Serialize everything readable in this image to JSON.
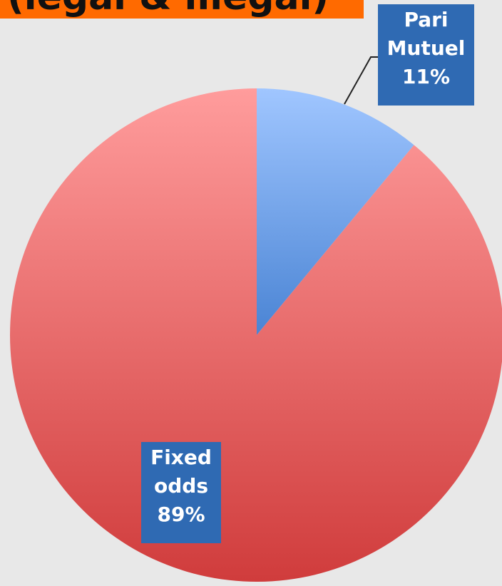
{
  "chart_data": {
    "type": "pie",
    "title": "(legal & illegal)",
    "categories": [
      "Pari Mutuel",
      "Fixed odds"
    ],
    "values": [
      11,
      89
    ],
    "value_labels": [
      "11%",
      "89%"
    ],
    "colors": [
      [
        "#a0c6ff",
        "#4a84d4"
      ],
      [
        "#ff9c9c",
        "#d03c3c"
      ]
    ],
    "label_color": "#2f6ab3"
  }
}
